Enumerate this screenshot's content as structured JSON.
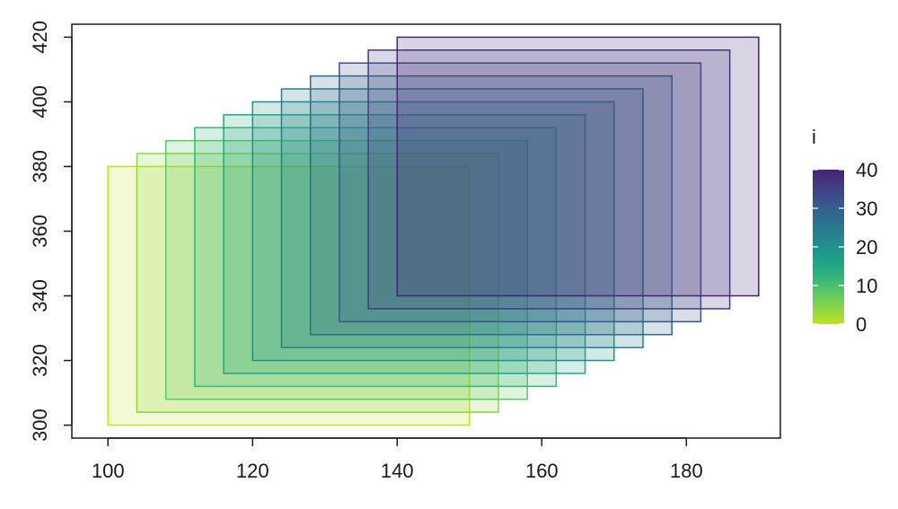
{
  "chart_data": {
    "type": "rect",
    "title": "",
    "xlabel": "",
    "ylabel": "",
    "xlim": [
      95,
      193
    ],
    "ylim": [
      296,
      424
    ],
    "xticks": [
      100,
      120,
      140,
      160,
      180
    ],
    "yticks": [
      300,
      320,
      340,
      360,
      380,
      400,
      420
    ],
    "grid": false,
    "rects": [
      {
        "i": 0,
        "xmin": 100,
        "xmax": 150,
        "ymin": 300,
        "ymax": 380
      },
      {
        "i": 4,
        "xmin": 104,
        "xmax": 154,
        "ymin": 304,
        "ymax": 384
      },
      {
        "i": 8,
        "xmin": 108,
        "xmax": 158,
        "ymin": 308,
        "ymax": 388
      },
      {
        "i": 12,
        "xmin": 112,
        "xmax": 162,
        "ymin": 312,
        "ymax": 392
      },
      {
        "i": 16,
        "xmin": 116,
        "xmax": 166,
        "ymin": 316,
        "ymax": 396
      },
      {
        "i": 20,
        "xmin": 120,
        "xmax": 170,
        "ymin": 320,
        "ymax": 400
      },
      {
        "i": 24,
        "xmin": 124,
        "xmax": 174,
        "ymin": 324,
        "ymax": 404
      },
      {
        "i": 28,
        "xmin": 128,
        "xmax": 178,
        "ymin": 328,
        "ymax": 408
      },
      {
        "i": 32,
        "xmin": 132,
        "xmax": 182,
        "ymin": 332,
        "ymax": 412
      },
      {
        "i": 36,
        "xmin": 136,
        "xmax": 186,
        "ymin": 336,
        "ymax": 416
      },
      {
        "i": 40,
        "xmin": 140,
        "xmax": 190,
        "ymin": 340,
        "ymax": 420
      }
    ],
    "fill_alpha": 0.2,
    "legend": {
      "title": "i",
      "position": "right",
      "range": [
        0,
        40
      ],
      "breaks": [
        0,
        10,
        20,
        30,
        40
      ],
      "colormap": "viridis-reversed",
      "colors": [
        "#c2df23",
        "#86d549",
        "#52c569",
        "#2ab07f",
        "#1e9b8a",
        "#25858e",
        "#2d708e",
        "#38588c",
        "#433e85",
        "#482173"
      ]
    }
  }
}
